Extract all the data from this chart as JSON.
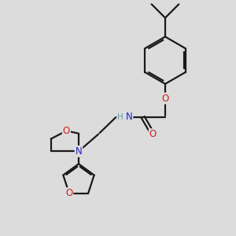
{
  "bg_color": "#dcdcdc",
  "bond_color": "#1a1a1a",
  "N_color": "#2020cc",
  "O_color": "#cc2020",
  "H_color": "#6699aa",
  "line_width": 1.6,
  "font_size": 8.5,
  "figsize": [
    3.0,
    3.0
  ],
  "dpi": 100,
  "xlim": [
    0.5,
    9.5
  ],
  "ylim": [
    0.5,
    9.5
  ]
}
